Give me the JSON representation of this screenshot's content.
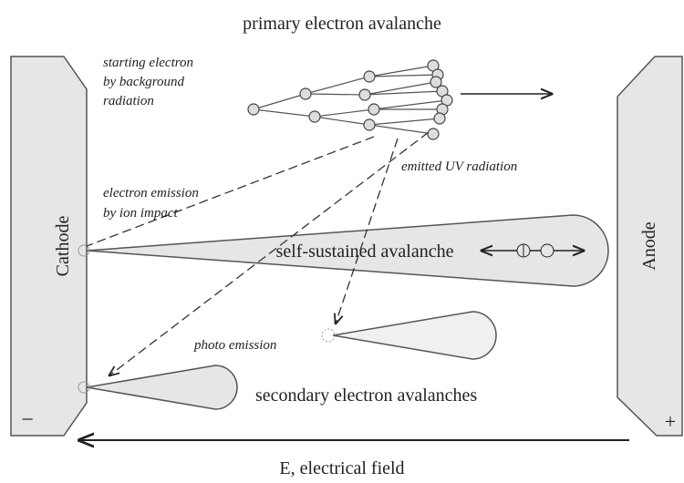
{
  "title": "primary electron avalanche",
  "labels": {
    "starting_electron": [
      "starting electron",
      "by background",
      "radiation"
    ],
    "emitted_uv": "emitted UV radiation",
    "ion_impact": [
      "electron emission",
      "by ion impact"
    ],
    "cathode": "Cathode",
    "anode": "Anode",
    "self_sustained": "self-sustained avalanche",
    "photo_emission": "photo emission",
    "secondary": "secondary electron avalanches",
    "field": "E, electrical field",
    "minus": "−",
    "plus": "+"
  }
}
